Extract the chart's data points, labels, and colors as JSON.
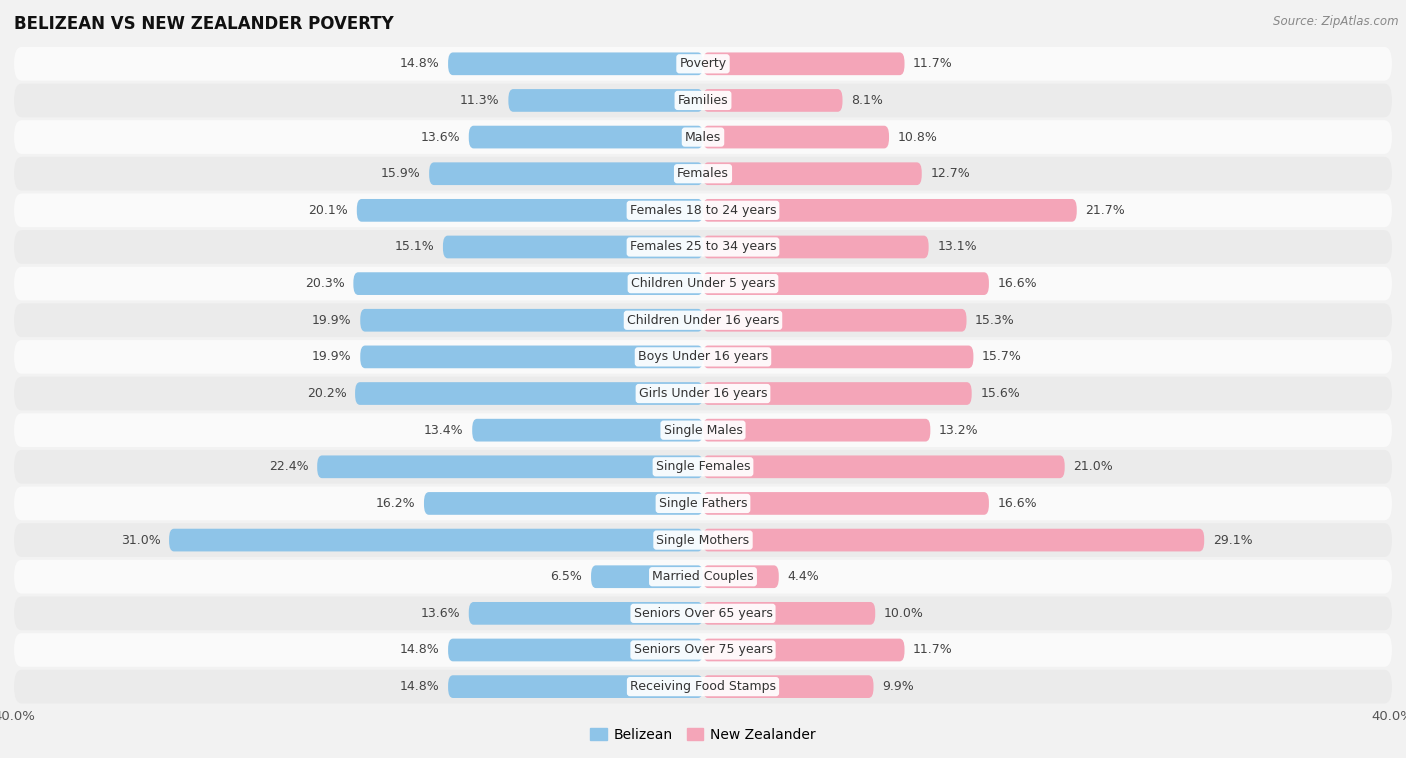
{
  "title": "BELIZEAN VS NEW ZEALANDER POVERTY",
  "source": "Source: ZipAtlas.com",
  "categories": [
    "Poverty",
    "Families",
    "Males",
    "Females",
    "Females 18 to 24 years",
    "Females 25 to 34 years",
    "Children Under 5 years",
    "Children Under 16 years",
    "Boys Under 16 years",
    "Girls Under 16 years",
    "Single Males",
    "Single Females",
    "Single Fathers",
    "Single Mothers",
    "Married Couples",
    "Seniors Over 65 years",
    "Seniors Over 75 years",
    "Receiving Food Stamps"
  ],
  "belizean": [
    14.8,
    11.3,
    13.6,
    15.9,
    20.1,
    15.1,
    20.3,
    19.9,
    19.9,
    20.2,
    13.4,
    22.4,
    16.2,
    31.0,
    6.5,
    13.6,
    14.8,
    14.8
  ],
  "new_zealander": [
    11.7,
    8.1,
    10.8,
    12.7,
    21.7,
    13.1,
    16.6,
    15.3,
    15.7,
    15.6,
    13.2,
    21.0,
    16.6,
    29.1,
    4.4,
    10.0,
    11.7,
    9.9
  ],
  "belizean_color": "#8ec4e8",
  "new_zealander_color": "#f4a5b8",
  "background_color": "#f2f2f2",
  "row_color_light": "#fafafa",
  "row_color_dark": "#ebebeb",
  "axis_limit": 40.0,
  "bar_height": 0.62,
  "label_fontsize": 9.0,
  "value_fontsize": 9.0,
  "legend_labels": [
    "Belizean",
    "New Zealander"
  ]
}
